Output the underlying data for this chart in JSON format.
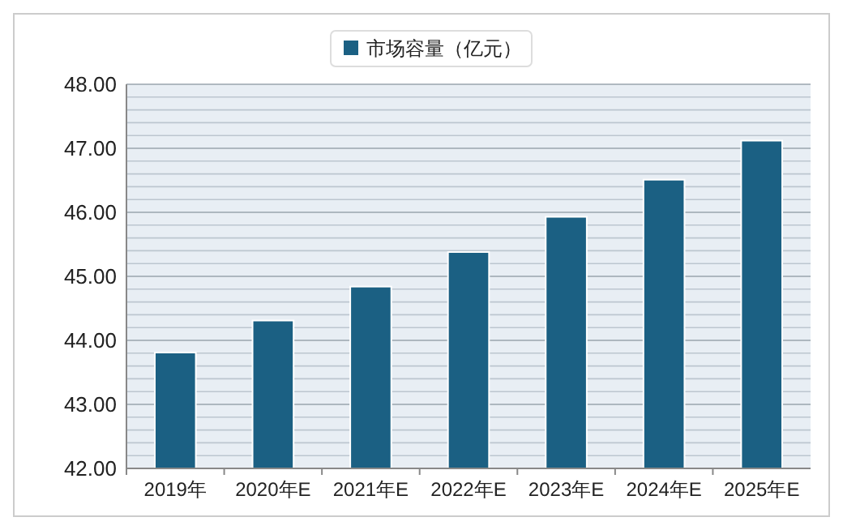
{
  "chart_data": {
    "type": "bar",
    "categories": [
      "2019年",
      "2020年E",
      "2021年E",
      "2022年E",
      "2023年E",
      "2024年E",
      "2025年E"
    ],
    "series": [
      {
        "name": "市场容量（亿元）",
        "color": "#1b6083",
        "values": [
          43.81,
          44.31,
          44.84,
          45.38,
          45.93,
          46.51,
          47.12
        ]
      }
    ],
    "ylim": [
      42,
      48
    ],
    "yticks": [
      {
        "value": 42,
        "label": "42.00"
      },
      {
        "value": 42.2,
        "label": null
      },
      {
        "value": 42.4,
        "label": null
      },
      {
        "value": 42.6,
        "label": null
      },
      {
        "value": 42.8,
        "label": null
      },
      {
        "value": 43,
        "label": "43.00"
      },
      {
        "value": 43.2,
        "label": null
      },
      {
        "value": 43.4,
        "label": null
      },
      {
        "value": 43.6,
        "label": null
      },
      {
        "value": 43.8,
        "label": null
      },
      {
        "value": 44,
        "label": "44.00"
      },
      {
        "value": 44.2,
        "label": null
      },
      {
        "value": 44.4,
        "label": null
      },
      {
        "value": 44.6,
        "label": null
      },
      {
        "value": 44.8,
        "label": null
      },
      {
        "value": 45,
        "label": "45.00"
      },
      {
        "value": 45.2,
        "label": null
      },
      {
        "value": 45.4,
        "label": null
      },
      {
        "value": 45.6,
        "label": null
      },
      {
        "value": 45.8,
        "label": null
      },
      {
        "value": 46,
        "label": "46.00"
      },
      {
        "value": 46.2,
        "label": null
      },
      {
        "value": 46.4,
        "label": null
      },
      {
        "value": 46.6,
        "label": null
      },
      {
        "value": 46.8,
        "label": null
      },
      {
        "value": 47,
        "label": "47.00"
      },
      {
        "value": 47.2,
        "label": null
      },
      {
        "value": 47.4,
        "label": null
      },
      {
        "value": 47.6,
        "label": null
      },
      {
        "value": 47.8,
        "label": null
      },
      {
        "value": 48,
        "label": "48.00"
      }
    ],
    "grid": "y",
    "legend": "top"
  }
}
